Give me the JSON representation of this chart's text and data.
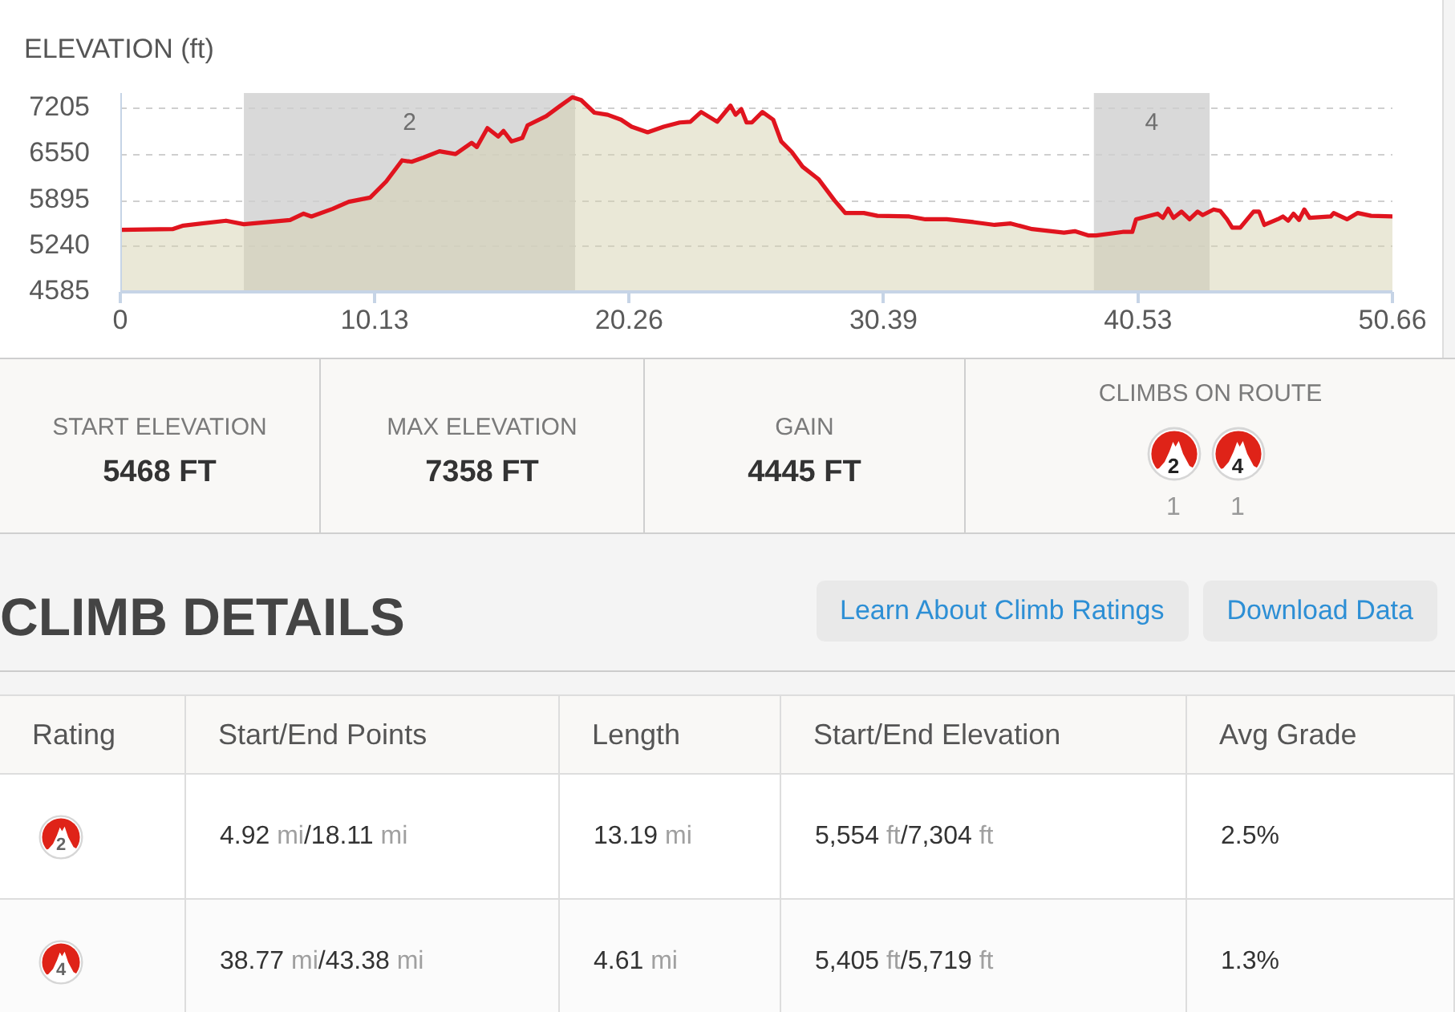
{
  "chart_data": [
    {
      "type": "area",
      "ylabel": "ELEVATION (ft)",
      "x": [
        0,
        2.08,
        2.51,
        4.21,
        4.92,
        6.76,
        7.3,
        7.61,
        8.46,
        9.1,
        9.95,
        10.59,
        11.22,
        11.6,
        12.07,
        12.71,
        13.35,
        13.99,
        14.2,
        14.62,
        15.05,
        15.26,
        15.58,
        16.01,
        16.22,
        16.96,
        17.49,
        18.0,
        18.35,
        18.88,
        19.41,
        19.94,
        20.36,
        21.0,
        21.64,
        22.28,
        22.7,
        23.13,
        23.77,
        24.3,
        24.5,
        24.73,
        24.94,
        25.15,
        25.57,
        26.0,
        26.32,
        26.74,
        27.17,
        27.81,
        28.44,
        28.87,
        29.61,
        30.15,
        31.42,
        32.06,
        32.91,
        33.97,
        34.82,
        35.46,
        36.31,
        37.58,
        38.01,
        38.54,
        38.86,
        39.92,
        40.3,
        40.45,
        40.88,
        41.31,
        41.52,
        41.73,
        41.94,
        42.26,
        42.58,
        42.9,
        43.1,
        43.54,
        43.8,
        44.07,
        44.28,
        44.6,
        45.13,
        45.35,
        45.56,
        46.09,
        46.3,
        46.51,
        46.72,
        46.94,
        47.15,
        47.36,
        48.2,
        48.32,
        48.85,
        49.28,
        49.81,
        50.66
      ],
      "series": [
        {
          "color": "#e0141e",
          "values": [
            5470,
            5480,
            5530,
            5600,
            5550,
            5610,
            5700,
            5660,
            5770,
            5870,
            5930,
            6160,
            6460,
            6440,
            6500,
            6590,
            6550,
            6710,
            6650,
            6920,
            6800,
            6880,
            6730,
            6780,
            6960,
            7090,
            7230,
            7360,
            7320,
            7140,
            7110,
            7040,
            6940,
            6860,
            6940,
            7000,
            7010,
            7150,
            7010,
            7240,
            7110,
            7190,
            7000,
            7000,
            7150,
            7040,
            6730,
            6580,
            6370,
            6190,
            5890,
            5710,
            5710,
            5670,
            5660,
            5620,
            5620,
            5580,
            5540,
            5560,
            5480,
            5430,
            5450,
            5390,
            5390,
            5440,
            5440,
            5620,
            5660,
            5700,
            5640,
            5770,
            5640,
            5730,
            5620,
            5730,
            5680,
            5760,
            5740,
            5620,
            5500,
            5500,
            5730,
            5730,
            5540,
            5620,
            5660,
            5600,
            5700,
            5610,
            5760,
            5640,
            5660,
            5710,
            5620,
            5710,
            5670,
            5660
          ]
        }
      ],
      "xlim": [
        0,
        50.66
      ],
      "xticks": [
        0,
        10.13,
        20.26,
        30.39,
        40.53,
        50.66
      ],
      "ylim": [
        4585,
        7420
      ],
      "yticks": [
        4585,
        5240,
        5895,
        6550,
        7205
      ],
      "grid": "y",
      "bands": [
        {
          "axis": "x",
          "from": 4.92,
          "to": 18.11,
          "label": "2",
          "color": "#d9d9d9"
        },
        {
          "axis": "x",
          "from": 38.77,
          "to": 43.38,
          "label": "4",
          "color": "#d9d9d9"
        }
      ]
    },
    {
      "type": "other",
      "title": "CLIMBS ON ROUTE",
      "annotations": [
        "START ELEVATION",
        "5468 FT",
        "MAX ELEVATION",
        "7358 FT",
        "GAIN",
        "4445 FT"
      ],
      "categories": [
        "2",
        "4"
      ],
      "values": [
        1,
        1
      ],
      "data_labels": true
    },
    {
      "type": "other",
      "title": "CLIMB DETAILS",
      "annotations": [
        "Learn About Climb Ratings",
        "Download Data"
      ],
      "categories": [
        "Rating",
        "Start/End Points",
        "Length",
        "Start/End Elevation",
        "Avg Grade"
      ],
      "cell_labels": [
        [
          "2",
          "4.92 mi/18.11 mi",
          "13.19 mi",
          "5,554 ft/7,304 ft",
          "2.5%"
        ],
        [
          "4",
          "38.77 mi/43.38 mi",
          "4.61 mi",
          "5,405 ft/5,719 ft",
          "1.3%"
        ]
      ]
    }
  ]
}
